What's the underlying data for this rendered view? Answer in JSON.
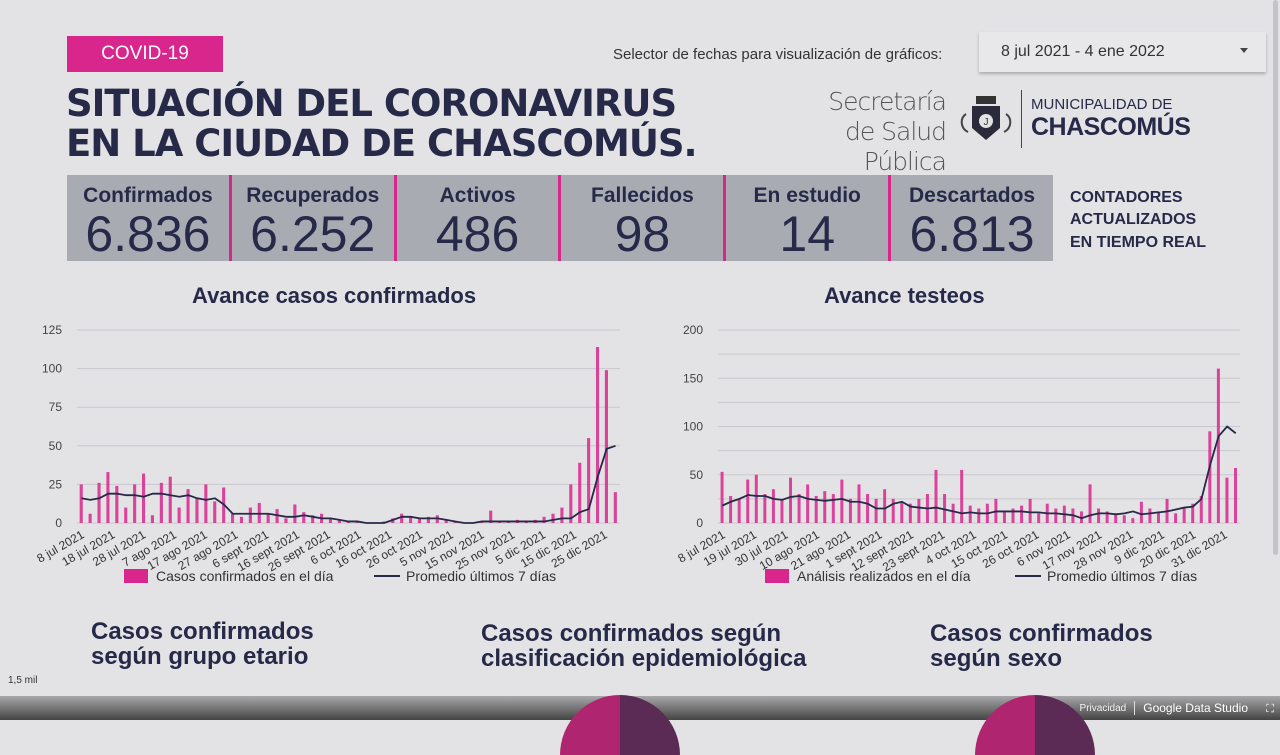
{
  "header": {
    "badge": "COVID-19",
    "title_line1": "SITUACIÓN DEL CORONAVIRUS",
    "title_line2": "EN LA CIUDAD DE CHASCOMÚS.",
    "date_selector_label": "Selector de fechas para visualización de gráficos:",
    "date_range": "8 jul 2021 - 4 ene 2022",
    "logo_secretaria_1": "Secretaría",
    "logo_secretaria_2": "de Salud Pública",
    "logo_muni_1": "MUNICIPALIDAD DE",
    "logo_muni_2": "CHASCOMÚS"
  },
  "stats": [
    {
      "label": "Confirmados",
      "value": "6.836"
    },
    {
      "label": "Recuperados",
      "value": "6.252"
    },
    {
      "label": "Activos",
      "value": "486"
    },
    {
      "label": "Fallecidos",
      "value": "98"
    },
    {
      "label": "En estudio",
      "value": "14"
    },
    {
      "label": "Descartados",
      "value": "6.813"
    }
  ],
  "realtime_note": [
    "CONTADORES",
    "ACTUALIZADOS",
    "EN TIEMPO REAL"
  ],
  "colors": {
    "accent": "#d9268c",
    "navy": "#262a48",
    "panel": "#a9abb3"
  },
  "chart_data": [
    {
      "type": "bar",
      "title": "Avance casos confirmados",
      "ylim": [
        0,
        125
      ],
      "yticks": [
        0,
        25,
        50,
        75,
        100,
        125
      ],
      "grid": true,
      "legend_placement": "bottom",
      "xticks": [
        "8 jul 2021",
        "18 jul 2021",
        "28 jul 2021",
        "7 ago 2021",
        "17 ago 2021",
        "27 ago 2021",
        "6 sept 2021",
        "16 sept 2021",
        "26 sept 2021",
        "6 oct 2021",
        "16 oct 2021",
        "26 oct 2021",
        "5 nov 2021",
        "15 nov 2021",
        "25 nov 2021",
        "5 dic 2021",
        "15 dic 2021",
        "25 dic 2021"
      ],
      "series": [
        {
          "name": "Casos confirmados en el día",
          "type": "bar",
          "color": "#d9268c",
          "values": [
            25,
            6,
            26,
            33,
            24,
            10,
            25,
            32,
            5,
            26,
            30,
            10,
            22,
            16,
            25,
            14,
            23,
            6,
            4,
            10,
            13,
            6,
            9,
            3,
            12,
            7,
            5,
            6,
            3,
            2,
            1,
            1,
            0,
            0,
            1,
            3,
            6,
            4,
            3,
            4,
            5,
            2,
            1,
            0,
            0,
            1,
            8,
            1,
            1,
            2,
            1,
            2,
            4,
            6,
            10,
            25,
            39,
            55,
            114,
            99,
            20
          ]
        },
        {
          "name": "Promedio últimos 7 días",
          "type": "line",
          "color": "#262a48",
          "values": [
            16,
            15,
            16,
            19,
            19,
            18,
            18,
            17,
            19,
            19,
            18,
            17,
            18,
            16,
            15,
            16,
            12,
            6,
            6,
            6,
            6,
            6,
            5,
            4,
            4,
            5,
            4,
            3,
            3,
            2,
            1,
            1,
            0,
            0,
            0,
            2,
            4,
            4,
            3,
            3,
            3,
            2,
            1,
            0,
            0,
            1,
            1,
            1,
            1,
            1,
            1,
            1,
            1,
            2,
            3,
            3,
            7,
            9,
            30,
            48,
            50
          ]
        }
      ]
    },
    {
      "type": "bar",
      "title": "Avance testeos",
      "ylim": [
        0,
        200
      ],
      "yticks": [
        0,
        50,
        100,
        150,
        200
      ],
      "grid": true,
      "legend_placement": "bottom",
      "xticks": [
        "8 jul 2021",
        "19 jul 2021",
        "30 jul 2021",
        "10 ago 2021",
        "21 ago 2021",
        "1 sept 2021",
        "12 sept 2021",
        "23 sept 2021",
        "4 oct 2021",
        "15 oct 2021",
        "26 oct 2021",
        "6 nov 2021",
        "17 nov 2021",
        "28 nov 2021",
        "9 dic 2021",
        "20 dic 2021",
        "31 dic 2021"
      ],
      "series": [
        {
          "name": "Análisis realizados en el día",
          "type": "bar",
          "color": "#d9268c",
          "values": [
            53,
            28,
            25,
            45,
            50,
            30,
            35,
            25,
            47,
            30,
            40,
            28,
            33,
            30,
            45,
            25,
            40,
            30,
            25,
            35,
            25,
            22,
            20,
            25,
            30,
            55,
            30,
            20,
            55,
            18,
            15,
            20,
            25,
            12,
            15,
            18,
            25,
            10,
            20,
            15,
            18,
            15,
            12,
            40,
            15,
            12,
            10,
            8,
            5,
            22,
            15,
            12,
            25,
            10,
            15,
            20,
            28,
            95,
            160,
            47,
            57
          ]
        },
        {
          "name": "Promedio últimos 7 días",
          "type": "line",
          "color": "#262a48",
          "values": [
            18,
            22,
            25,
            29,
            28,
            28,
            25,
            24,
            27,
            28,
            25,
            24,
            23,
            24,
            25,
            22,
            22,
            20,
            15,
            15,
            20,
            22,
            17,
            16,
            15,
            16,
            14,
            12,
            10,
            11,
            10,
            10,
            12,
            12,
            12,
            12,
            11,
            11,
            10,
            10,
            9,
            8,
            5,
            8,
            10,
            10,
            9,
            10,
            12,
            9,
            10,
            11,
            12,
            14,
            16,
            17,
            25,
            60,
            90,
            100,
            93
          ]
        }
      ]
    }
  ],
  "sections": [
    {
      "line1": "Casos confirmados",
      "line2": "según grupo etario"
    },
    {
      "line1": "Casos confirmados según",
      "line2": "clasificación epidemiológica"
    },
    {
      "line1": "Casos confirmados",
      "line2": "según sexo"
    }
  ],
  "axis_fragment": "1,5 mil",
  "footer": {
    "privacy": "Privacidad",
    "brand": "Google Data Studio"
  }
}
